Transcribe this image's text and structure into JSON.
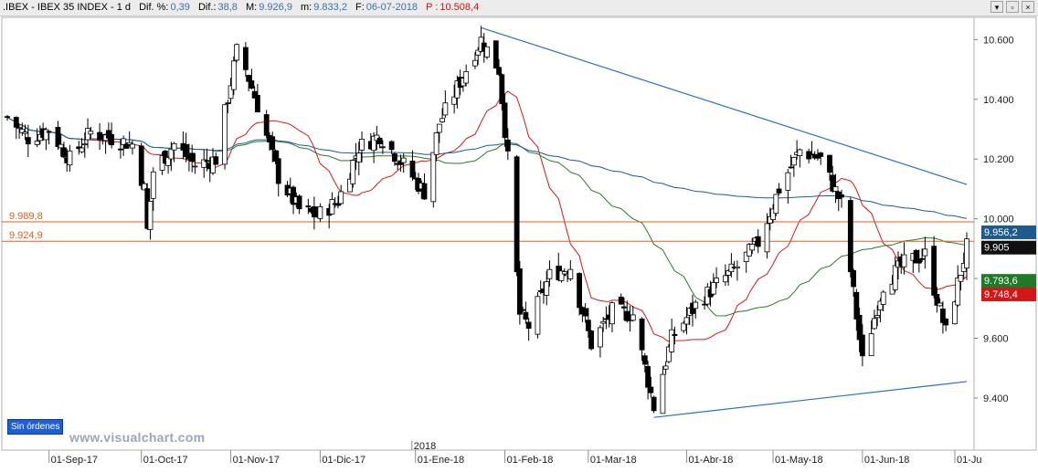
{
  "titlebar": {
    "symbol": ".IBEX - IBEX 35 INDEX - 1 d",
    "dif_pct_label": "Dif. %:",
    "dif_pct_value": "0,39",
    "dif_label": "Dif.:",
    "dif_value": "38,8",
    "max_label": "M:",
    "max_value": "9.926,9",
    "min_label": "m:",
    "min_value": "9.833,2",
    "date_label": "F:",
    "date_value": "06-07-2018",
    "p_label": "P :",
    "p_value": "10.508,4"
  },
  "window_buttons": [
    "▾",
    "▫",
    "×"
  ],
  "badge": "Sin órdenes",
  "watermark": "www.visualchart.com",
  "chart_data": {
    "type": "candlestick",
    "ylim": [
      9250,
      10650
    ],
    "y_ticks": [
      "9.400",
      "9.600",
      "9.800",
      "10.000",
      "10.200",
      "10.400",
      "10.600"
    ],
    "x_ticks": [
      "01-Sep-17",
      "01-Oct-17",
      "01-Nov-17",
      "01-Dic-17",
      "01-Ene-18",
      "01-Feb-18",
      "01-Mar-18",
      "01-Abr-18",
      "01-May-18",
      "01-Jun-18",
      "01-Ju"
    ],
    "year_label": "2018",
    "horizontal_levels": [
      {
        "label": "9.989,8",
        "value": 9989.8,
        "color": "#e06020"
      },
      {
        "label": "9.924,9",
        "value": 9924.9,
        "color": "#e06020"
      }
    ],
    "price_tags": [
      {
        "label": "9.956,2",
        "value": 9956.2,
        "bg": "#1e5a8c"
      },
      {
        "label": "9.905",
        "value": 9905,
        "bg": "#101010"
      },
      {
        "label": "9.793,6",
        "value": 9793.6,
        "bg": "#1f7a28"
      },
      {
        "label": "9.748,4",
        "value": 9748.4,
        "bg": "#d41616"
      }
    ],
    "trendlines": [
      {
        "from": [
          "2018-01-24",
          10640
        ],
        "to": [
          "2018-07-06",
          10115
        ],
        "color": "#2b6fc9"
      },
      {
        "from": [
          "2018-03-23",
          9335
        ],
        "to": [
          "2018-07-06",
          9455
        ],
        "color": "#2b6fc9"
      }
    ],
    "moving_averages": [
      {
        "color": "#d81818"
      },
      {
        "color": "#2b7a2b"
      },
      {
        "color": "#1e5a8c"
      }
    ],
    "close_anchors": [
      [
        "2017-08-18",
        10340
      ],
      [
        "2017-08-25",
        10270
      ],
      [
        "2017-09-01",
        10300
      ],
      [
        "2017-09-08",
        10200
      ],
      [
        "2017-09-15",
        10290
      ],
      [
        "2017-09-22",
        10270
      ],
      [
        "2017-09-29",
        10250
      ],
      [
        "2017-10-03",
        10100
      ],
      [
        "2017-10-04",
        9960
      ],
      [
        "2017-10-06",
        10160
      ],
      [
        "2017-10-13",
        10250
      ],
      [
        "2017-10-20",
        10180
      ],
      [
        "2017-10-27",
        10200
      ],
      [
        "2017-11-03",
        10560
      ],
      [
        "2017-11-06",
        10500
      ],
      [
        "2017-11-10",
        10380
      ],
      [
        "2017-11-17",
        10140
      ],
      [
        "2017-11-24",
        10030
      ],
      [
        "2017-11-30",
        10010
      ],
      [
        "2017-12-07",
        10060
      ],
      [
        "2017-12-14",
        10240
      ],
      [
        "2017-12-21",
        10280
      ],
      [
        "2017-12-29",
        10180
      ],
      [
        "2018-01-05",
        10090
      ],
      [
        "2018-01-10",
        10320
      ],
      [
        "2018-01-17",
        10460
      ],
      [
        "2018-01-24",
        10600
      ],
      [
        "2018-01-30",
        10500
      ],
      [
        "2018-02-02",
        10200
      ],
      [
        "2018-02-06",
        9680
      ],
      [
        "2018-02-09",
        9640
      ],
      [
        "2018-02-16",
        9810
      ],
      [
        "2018-02-23",
        9840
      ],
      [
        "2018-03-02",
        9580
      ],
      [
        "2018-03-09",
        9690
      ],
      [
        "2018-03-16",
        9680
      ],
      [
        "2018-03-23",
        9370
      ],
      [
        "2018-03-29",
        9600
      ],
      [
        "2018-04-06",
        9710
      ],
      [
        "2018-04-13",
        9780
      ],
      [
        "2018-04-20",
        9840
      ],
      [
        "2018-04-27",
        9920
      ],
      [
        "2018-05-04",
        10100
      ],
      [
        "2018-05-11",
        10230
      ],
      [
        "2018-05-18",
        10200
      ],
      [
        "2018-05-25",
        10050
      ],
      [
        "2018-05-29",
        9750
      ],
      [
        "2018-06-01",
        9520
      ],
      [
        "2018-06-08",
        9780
      ],
      [
        "2018-06-15",
        9850
      ],
      [
        "2018-06-22",
        9880
      ],
      [
        "2018-06-29",
        9620
      ],
      [
        "2018-07-06",
        9905
      ]
    ]
  }
}
